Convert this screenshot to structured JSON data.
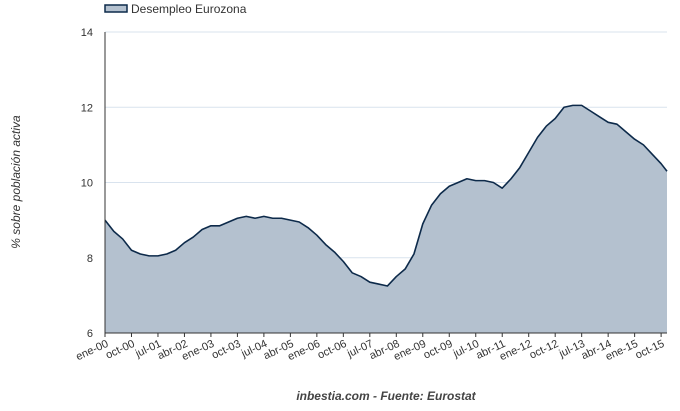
{
  "chart_data": {
    "type": "area",
    "ylabel": "% sobre población activa",
    "source": "inbestia.com - Fuente: Eurostat",
    "ylim": [
      6,
      14
    ],
    "yticks": [
      6,
      8,
      10,
      12,
      14
    ],
    "xlim": [
      "2000-01",
      "2015-12"
    ],
    "grid": true,
    "legend_position": "top-left",
    "x_tick_labels": [
      "ene-00",
      "oct-00",
      "jul-01",
      "abr-02",
      "ene-03",
      "oct-03",
      "jul-04",
      "abr-05",
      "ene-06",
      "oct-06",
      "jul-07",
      "abr-08",
      "ene-09",
      "oct-09",
      "jul-10",
      "abr-11",
      "ene-12",
      "oct-12",
      "jul-13",
      "abr-14",
      "ene-15",
      "oct-15"
    ],
    "colors": {
      "line": "#0d2a4a",
      "fill": "#b4c1cf",
      "grid": "#d9e3ee",
      "axis": "#333333"
    },
    "series": [
      {
        "name": "Desempleo Eurozona",
        "points": [
          [
            "2000-01",
            9.0
          ],
          [
            "2000-04",
            8.7
          ],
          [
            "2000-07",
            8.5
          ],
          [
            "2000-10",
            8.2
          ],
          [
            "2001-01",
            8.1
          ],
          [
            "2001-04",
            8.05
          ],
          [
            "2001-07",
            8.05
          ],
          [
            "2001-10",
            8.1
          ],
          [
            "2002-01",
            8.2
          ],
          [
            "2002-04",
            8.4
          ],
          [
            "2002-07",
            8.55
          ],
          [
            "2002-10",
            8.75
          ],
          [
            "2003-01",
            8.85
          ],
          [
            "2003-04",
            8.85
          ],
          [
            "2003-07",
            8.95
          ],
          [
            "2003-10",
            9.05
          ],
          [
            "2004-01",
            9.1
          ],
          [
            "2004-04",
            9.05
          ],
          [
            "2004-07",
            9.1
          ],
          [
            "2004-10",
            9.05
          ],
          [
            "2005-01",
            9.05
          ],
          [
            "2005-04",
            9.0
          ],
          [
            "2005-07",
            8.95
          ],
          [
            "2005-10",
            8.8
          ],
          [
            "2006-01",
            8.6
          ],
          [
            "2006-04",
            8.35
          ],
          [
            "2006-07",
            8.15
          ],
          [
            "2006-10",
            7.9
          ],
          [
            "2007-01",
            7.6
          ],
          [
            "2007-04",
            7.5
          ],
          [
            "2007-07",
            7.35
          ],
          [
            "2007-10",
            7.3
          ],
          [
            "2008-01",
            7.25
          ],
          [
            "2008-04",
            7.5
          ],
          [
            "2008-07",
            7.7
          ],
          [
            "2008-10",
            8.1
          ],
          [
            "2009-01",
            8.9
          ],
          [
            "2009-04",
            9.4
          ],
          [
            "2009-07",
            9.7
          ],
          [
            "2009-10",
            9.9
          ],
          [
            "2010-01",
            10.0
          ],
          [
            "2010-04",
            10.1
          ],
          [
            "2010-07",
            10.05
          ],
          [
            "2010-10",
            10.05
          ],
          [
            "2011-01",
            10.0
          ],
          [
            "2011-04",
            9.85
          ],
          [
            "2011-07",
            10.1
          ],
          [
            "2011-10",
            10.4
          ],
          [
            "2012-01",
            10.8
          ],
          [
            "2012-04",
            11.2
          ],
          [
            "2012-07",
            11.5
          ],
          [
            "2012-10",
            11.7
          ],
          [
            "2013-01",
            12.0
          ],
          [
            "2013-04",
            12.05
          ],
          [
            "2013-07",
            12.05
          ],
          [
            "2013-10",
            11.9
          ],
          [
            "2014-01",
            11.75
          ],
          [
            "2014-04",
            11.6
          ],
          [
            "2014-07",
            11.55
          ],
          [
            "2014-10",
            11.35
          ],
          [
            "2015-01",
            11.15
          ],
          [
            "2015-04",
            11.0
          ],
          [
            "2015-07",
            10.75
          ],
          [
            "2015-10",
            10.5
          ],
          [
            "2015-12",
            10.3
          ]
        ]
      }
    ]
  }
}
